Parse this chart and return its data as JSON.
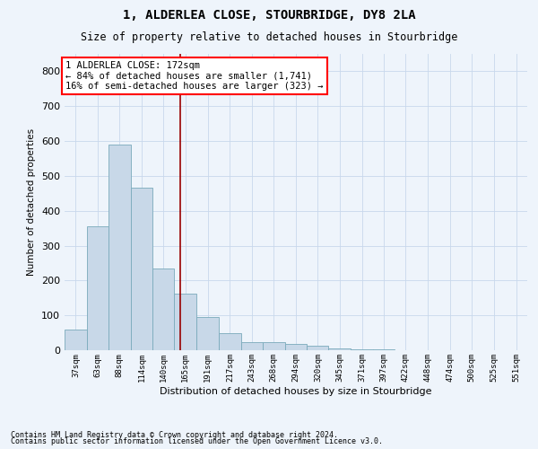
{
  "title": "1, ALDERLEA CLOSE, STOURBRIDGE, DY8 2LA",
  "subtitle": "Size of property relative to detached houses in Stourbridge",
  "xlabel": "Distribution of detached houses by size in Stourbridge",
  "ylabel": "Number of detached properties",
  "footnote1": "Contains HM Land Registry data © Crown copyright and database right 2024.",
  "footnote2": "Contains public sector information licensed under the Open Government Licence v3.0.",
  "annotation_line1": "1 ALDERLEA CLOSE: 172sqm",
  "annotation_line2": "← 84% of detached houses are smaller (1,741)",
  "annotation_line3": "16% of semi-detached houses are larger (323) →",
  "bar_color": "#c8d8e8",
  "bar_edge_color": "#7aaabb",
  "grid_color": "#c8d8ec",
  "property_line_x": 172,
  "categories": [
    "37sqm",
    "63sqm",
    "88sqm",
    "114sqm",
    "140sqm",
    "165sqm",
    "191sqm",
    "217sqm",
    "243sqm",
    "268sqm",
    "294sqm",
    "320sqm",
    "345sqm",
    "371sqm",
    "397sqm",
    "422sqm",
    "448sqm",
    "474sqm",
    "500sqm",
    "525sqm",
    "551sqm"
  ],
  "bin_edges": [
    37,
    63,
    88,
    114,
    140,
    165,
    191,
    217,
    243,
    268,
    294,
    320,
    345,
    371,
    397,
    422,
    448,
    474,
    500,
    525,
    551,
    577
  ],
  "bar_heights": [
    60,
    355,
    590,
    465,
    235,
    162,
    95,
    48,
    22,
    22,
    17,
    14,
    6,
    3,
    2,
    1,
    1,
    1,
    0,
    0,
    0
  ],
  "ylim": [
    0,
    850
  ],
  "yticks": [
    0,
    100,
    200,
    300,
    400,
    500,
    600,
    700,
    800
  ],
  "bg_color": "#eef4fb",
  "plot_bg_color": "#eef4fb",
  "title_fontsize": 10,
  "subtitle_fontsize": 8.5
}
